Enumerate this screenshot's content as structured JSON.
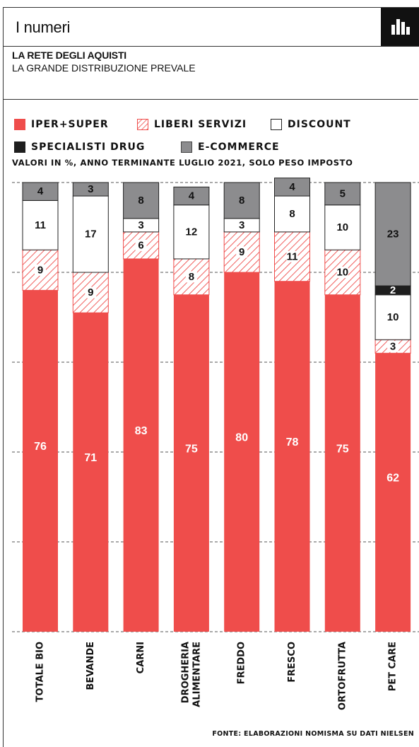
{
  "header": {
    "title": "I numeri",
    "icon": "bar-chart-icon"
  },
  "subtitle": {
    "title": "LA RETE DEGLI AQUISTI",
    "text": "LA GRANDE DISTRIBUZIONE PREVALE"
  },
  "note": "VALORI IN %, ANNO TERMINANTE LUGLIO 2021, SOLO PESO IMPOSTO",
  "source": "FONTE: ELABORAZIONI NOMISMA SU DATI NIELSEN",
  "colors": {
    "iper": "#ef4d4b",
    "liberi": "#ef4d4b",
    "discount": "#ffffff",
    "drug": "#1e1e1e",
    "ecommerce": "#8c8c8e"
  },
  "chart_data": {
    "type": "bar",
    "stacked": true,
    "orientation": "vertical",
    "ylim": [
      0,
      100
    ],
    "categories": [
      "TOTALE BIO",
      "BEVANDE",
      "CARNI",
      "DROGHERIA ALIMENTARE",
      "FREDDO",
      "FRESCO",
      "ORTOFRUTTA",
      "PET CARE"
    ],
    "series": [
      {
        "name": "IPER+SUPER",
        "values": [
          76,
          71,
          83,
          75,
          80,
          78,
          75,
          62
        ]
      },
      {
        "name": "LIBERI SERVIZI",
        "values": [
          9,
          9,
          6,
          8,
          9,
          11,
          10,
          3
        ]
      },
      {
        "name": "DISCOUNT",
        "values": [
          11,
          17,
          3,
          12,
          3,
          8,
          10,
          10
        ]
      },
      {
        "name": "SPECIALISTI DRUG",
        "values": [
          null,
          null,
          null,
          null,
          null,
          null,
          null,
          2
        ]
      },
      {
        "name": "E-COMMERCE",
        "values": [
          4,
          3,
          8,
          4,
          8,
          4,
          5,
          23
        ]
      }
    ],
    "legend_position": "top",
    "grid": true
  }
}
